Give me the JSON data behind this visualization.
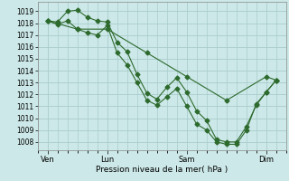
{
  "xlabel": "Pression niveau de la mer( hPa )",
  "bg_color": "#cce8e8",
  "grid_color": "#aacccc",
  "line_color": "#2d6a2d",
  "ylim": [
    1007.3,
    1019.8
  ],
  "yticks": [
    1008,
    1009,
    1010,
    1011,
    1012,
    1013,
    1014,
    1015,
    1016,
    1017,
    1018,
    1019
  ],
  "xlim": [
    0,
    12.5
  ],
  "xtick_positions": [
    0.5,
    3.5,
    7.5,
    11.5
  ],
  "xtick_labels": [
    "Ven",
    "Lun",
    "Sam",
    "Dim"
  ],
  "line1_x": [
    0.5,
    1.0,
    1.5,
    2.0,
    2.5,
    3.0,
    3.5,
    4.0,
    4.5,
    5.0,
    5.5,
    6.0,
    6.5,
    7.0,
    7.5,
    8.0,
    8.5,
    9.0,
    9.5,
    10.0,
    10.5,
    11.0,
    11.5,
    12.0
  ],
  "line1_y": [
    1018.2,
    1018.1,
    1019.0,
    1019.1,
    1018.5,
    1018.2,
    1018.1,
    1016.4,
    1015.6,
    1013.7,
    1012.1,
    1011.6,
    1012.6,
    1013.4,
    1012.2,
    1010.6,
    1009.8,
    1008.2,
    1008.0,
    1008.0,
    1009.3,
    1011.1,
    1012.2,
    1013.2
  ],
  "line2_x": [
    0.5,
    1.0,
    1.5,
    2.0,
    2.5,
    3.0,
    3.5,
    4.0,
    4.5,
    5.0,
    5.5,
    6.0,
    6.5,
    7.0,
    7.5,
    8.0,
    8.5,
    9.0,
    9.5,
    10.0,
    10.5,
    11.0,
    11.5,
    12.0
  ],
  "line2_y": [
    1018.2,
    1017.9,
    1018.2,
    1017.5,
    1017.2,
    1017.0,
    1017.8,
    1015.5,
    1014.5,
    1013.0,
    1011.5,
    1011.1,
    1011.8,
    1012.5,
    1011.0,
    1009.5,
    1009.0,
    1008.0,
    1007.8,
    1007.8,
    1009.0,
    1011.2,
    1012.2,
    1013.2
  ],
  "line3_x": [
    0.5,
    2.0,
    3.5,
    5.5,
    7.5,
    9.5,
    11.5,
    12.0
  ],
  "line3_y": [
    1018.2,
    1017.5,
    1017.5,
    1015.5,
    1013.5,
    1011.5,
    1013.5,
    1013.2
  ],
  "marker_size": 2.5,
  "linewidth": 0.8
}
